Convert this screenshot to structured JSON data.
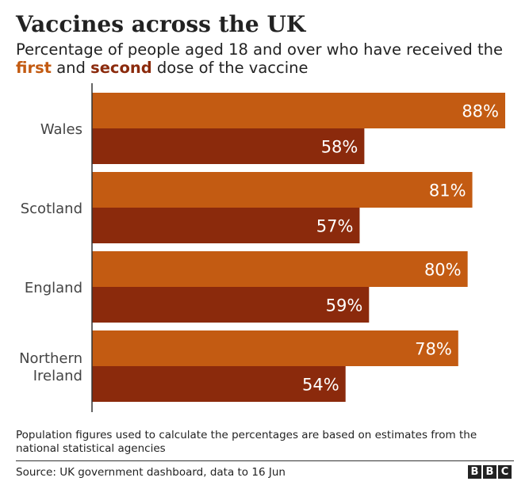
{
  "header": {
    "title": "Vaccines across the UK",
    "subtitle_before": "Percentage of people aged 18 and over who have received the ",
    "subtitle_first": "first",
    "subtitle_and": " and ",
    "subtitle_second": "second",
    "subtitle_after": " dose of the vaccine"
  },
  "chart_data": {
    "type": "bar",
    "orientation": "horizontal",
    "title": "Vaccines across the UK",
    "subtitle": "Percentage of people aged 18 and over who have received the first and second dose of the vaccine",
    "categories": [
      [
        "Wales"
      ],
      [
        "Scotland"
      ],
      [
        "England"
      ],
      [
        "Northern",
        "Ireland"
      ]
    ],
    "series": [
      {
        "name": "first",
        "color": "#c35b12",
        "values": [
          88,
          81,
          80,
          78
        ]
      },
      {
        "name": "second",
        "color": "#8b2a0c",
        "values": [
          58,
          57,
          59,
          54
        ]
      }
    ],
    "value_suffix": "%",
    "xlim": [
      0,
      88
    ],
    "grid": false,
    "legend": "in-subtitle"
  },
  "footer": {
    "note": "Population figures used to calculate the percentages are based on estimates from the national statistical agencies",
    "source": "Source: UK government dashboard, data to 16 Jun",
    "logo_letters": [
      "B",
      "B",
      "C"
    ]
  }
}
